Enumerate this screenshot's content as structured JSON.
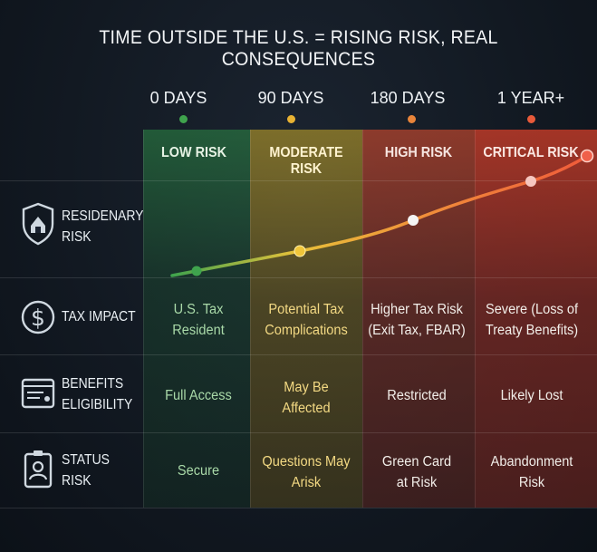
{
  "title": "TIME OUTSIDE THE U.S.  =  RISING RISK, REAL CONSEQUENCES",
  "columns": [
    {
      "label": "0 DAYS",
      "risk": "LOW RISK",
      "dot_color": "#3fa34d",
      "band_color": "#1f5a30"
    },
    {
      "label": "90 DAYS",
      "risk": "MODERATE RISK",
      "dot_color": "#e8b233",
      "band_color": "#6a5a1c"
    },
    {
      "label": "180 DAYS",
      "risk": "HIGH RISK",
      "dot_color": "#e8843a",
      "band_color": "#7a2f22"
    },
    {
      "label": "1 YEAR+",
      "risk": "CRITICAL RISK",
      "dot_color": "#e85a3a",
      "band_color": "#8a2820"
    }
  ],
  "rows": [
    {
      "label_line1": "RESIDENARY",
      "label_line2": "RISK",
      "icon": "shield-house-icon"
    },
    {
      "label_line1": "TAX IMPACT",
      "label_line2": "",
      "icon": "dollar-circle-icon",
      "cells": [
        {
          "l1": "U.S. Tax",
          "l2": "Resident"
        },
        {
          "l1": "Potential Tax",
          "l2": "Complications"
        },
        {
          "l1": "Higher Tax Risk",
          "l2": "(Exit Tax, FBAR)"
        },
        {
          "l1": "Severe (Loss of",
          "l2": "Treaty Benefits)"
        }
      ]
    },
    {
      "label_line1": "BENEFITS",
      "label_line2": "ELIGIBILITY",
      "icon": "benefits-card-icon",
      "cells": [
        {
          "l1": "Full Access",
          "l2": ""
        },
        {
          "l1": "May Be",
          "l2": "Affected"
        },
        {
          "l1": "Restricted",
          "l2": ""
        },
        {
          "l1": "Likely Lost",
          "l2": ""
        }
      ]
    },
    {
      "label_line1": "STATUS",
      "label_line2": "RISK",
      "icon": "id-badge-icon",
      "cells": [
        {
          "l1": "Secure",
          "l2": ""
        },
        {
          "l1": "Questions May",
          "l2": "Arisk"
        },
        {
          "l1": "Green Card",
          "l2": "at Risk"
        },
        {
          "l1": "Abandonment",
          "l2": "Risk"
        }
      ]
    }
  ],
  "curve": {
    "stroke_colors": [
      "#3fa34d",
      "#e8c23a",
      "#f0903a",
      "#f05a3a"
    ],
    "point_colors": [
      "#3fa34d",
      "#f0c63a",
      "#f4f4f4",
      "#f6c7c0",
      "#f0604a"
    ]
  }
}
